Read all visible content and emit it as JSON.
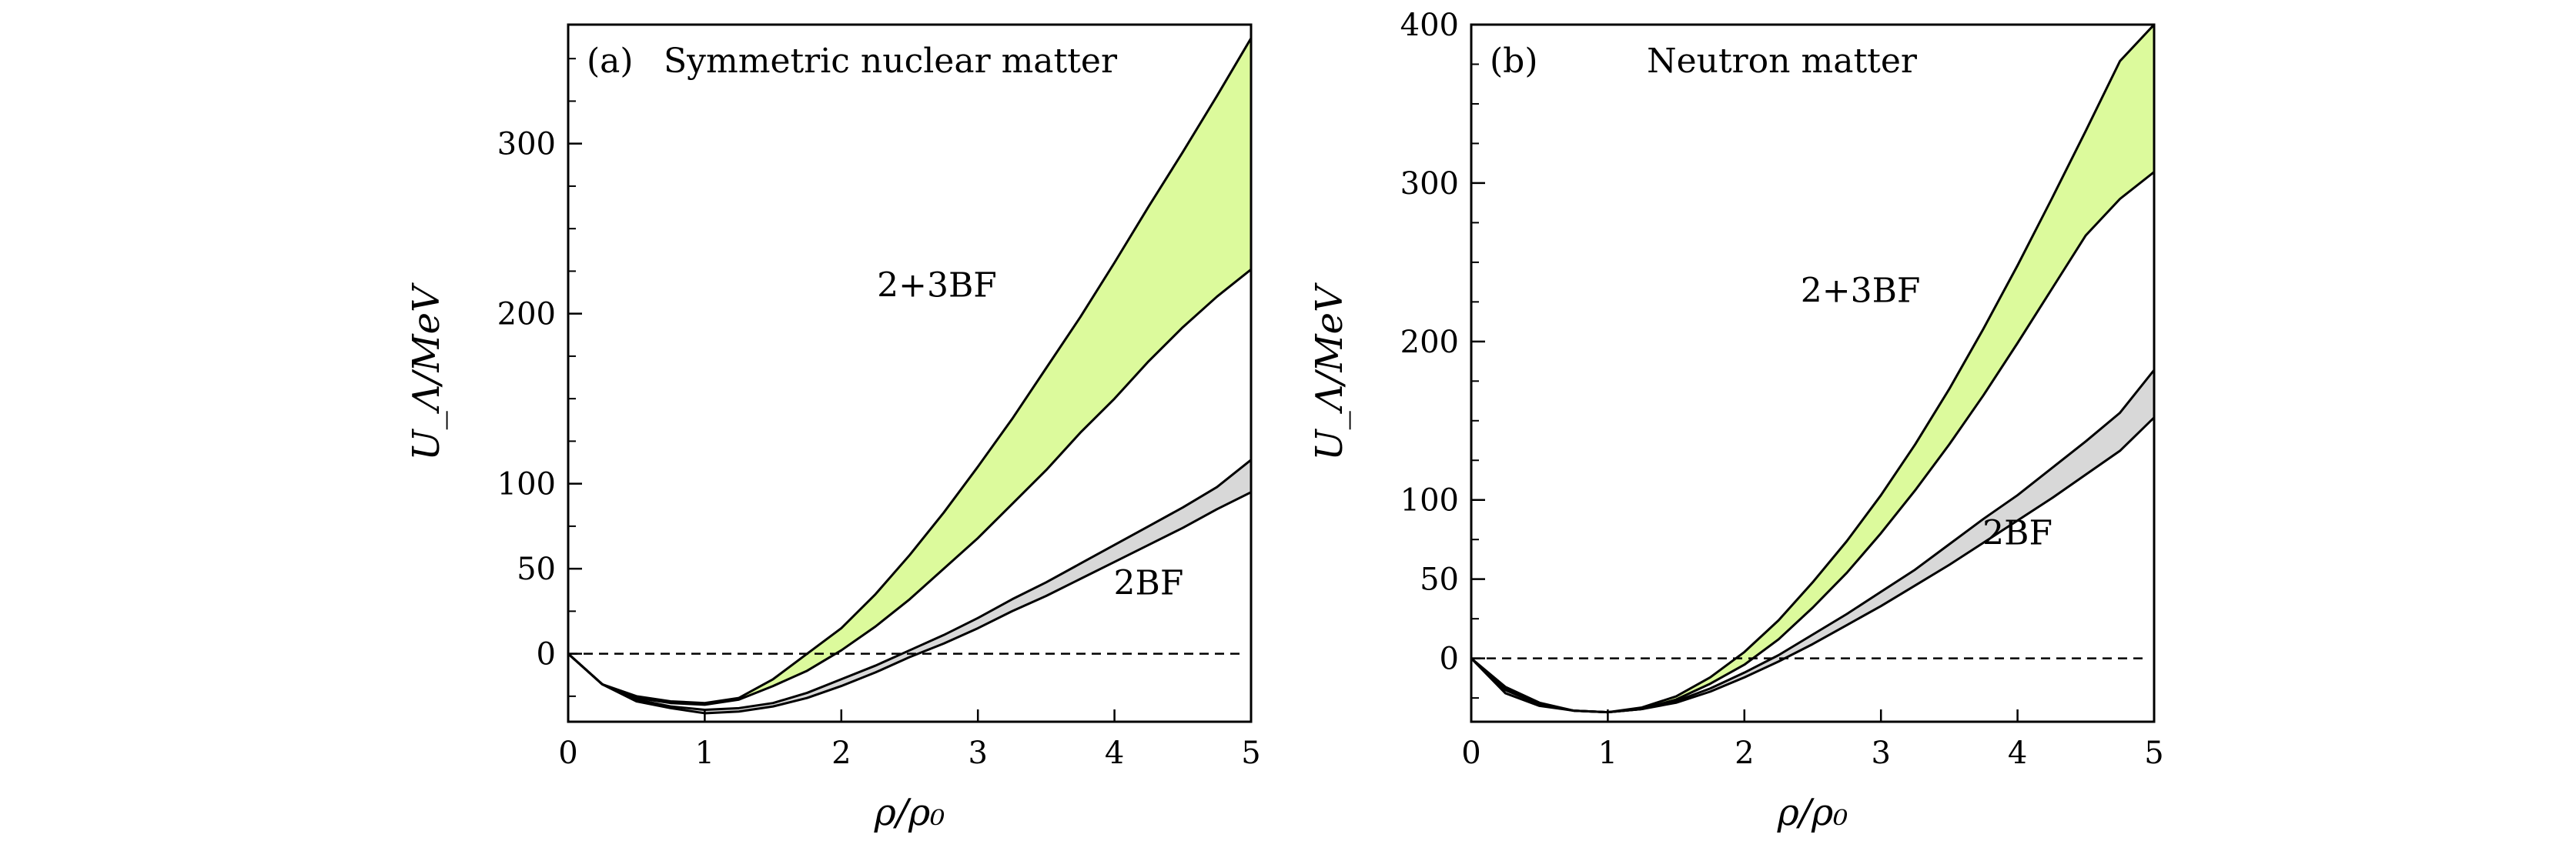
{
  "chart_data": [
    {
      "type": "area",
      "id": "a",
      "panel_label": "(a)",
      "title": "Symmetric nuclear matter",
      "xlabel": "ρ/ρ₀",
      "ylabel": "U_Λ/MeV",
      "xlim": [
        0,
        5
      ],
      "ylim": [
        -40,
        370
      ],
      "x_ticks": [
        0,
        1,
        2,
        3,
        4,
        5
      ],
      "y_ticks": [
        0,
        50,
        100,
        200,
        300
      ],
      "y_minor_ticks": [
        -25,
        25,
        75,
        125,
        150,
        175,
        225,
        250,
        275,
        325,
        350
      ],
      "x_tick_labels": [
        "0",
        "1",
        "2",
        "3",
        "4",
        "5"
      ],
      "y_tick_labels": [
        "0",
        "50",
        "100",
        "200",
        "300"
      ],
      "reference_line": {
        "y": 0,
        "style": "dashed"
      },
      "x": [
        0,
        0.25,
        0.5,
        0.75,
        1.0,
        1.25,
        1.5,
        1.75,
        2.0,
        2.25,
        2.5,
        2.75,
        3.0,
        3.25,
        3.5,
        3.75,
        4.0,
        4.25,
        4.5,
        4.75,
        5.0
      ],
      "series": [
        {
          "label": "2+3BF",
          "color": "#dcfa9c",
          "label_pos": [
            2.7,
            210
          ],
          "upper": [
            0,
            -18,
            -25,
            -28,
            -29,
            -26,
            -15,
            0,
            15,
            35,
            58,
            83,
            110,
            138,
            168,
            198,
            230,
            263,
            295,
            328,
            362
          ],
          "lower": [
            0,
            -18,
            -26,
            -29,
            -30,
            -27,
            -19,
            -10,
            2,
            16,
            32,
            50,
            68,
            88,
            108,
            130,
            150,
            172,
            192,
            210,
            226
          ]
        },
        {
          "label": "2BF",
          "color": "#d8d8d8",
          "label_pos": [
            4.25,
            35
          ],
          "upper": [
            0,
            -18,
            -27,
            -31,
            -33,
            -32,
            -29,
            -23,
            -15,
            -7,
            2,
            11,
            21,
            32,
            42,
            53,
            64,
            75,
            86,
            98,
            114
          ],
          "lower": [
            0,
            -18,
            -28,
            -32,
            -35,
            -34,
            -31,
            -26,
            -19,
            -11,
            -2,
            6,
            15,
            25,
            34,
            44,
            54,
            64,
            74,
            85,
            95
          ]
        }
      ]
    },
    {
      "type": "area",
      "id": "b",
      "panel_label": "(b)",
      "title": "Neutron matter",
      "xlabel": "ρ/ρ₀",
      "ylabel": "U_Λ/MeV",
      "xlim": [
        0,
        5
      ],
      "ylim": [
        -40,
        400
      ],
      "x_ticks": [
        0,
        1,
        2,
        3,
        4,
        5
      ],
      "y_ticks": [
        0,
        50,
        100,
        200,
        300,
        400
      ],
      "y_minor_ticks": [
        -25,
        25,
        75,
        125,
        150,
        175,
        225,
        250,
        275,
        325,
        350,
        375
      ],
      "x_tick_labels": [
        "0",
        "1",
        "2",
        "3",
        "4",
        "5"
      ],
      "y_tick_labels": [
        "0",
        "50",
        "100",
        "200",
        "300",
        "400"
      ],
      "reference_line": {
        "y": 0,
        "style": "dashed"
      },
      "x": [
        0,
        0.25,
        0.5,
        0.75,
        1.0,
        1.25,
        1.5,
        1.75,
        2.0,
        2.25,
        2.5,
        2.75,
        3.0,
        3.25,
        3.5,
        3.75,
        4.0,
        4.25,
        4.5,
        4.75,
        5.0
      ],
      "series": [
        {
          "label": "2+3BF",
          "color": "#dcfa9c",
          "label_pos": [
            2.85,
            225
          ],
          "upper": [
            0,
            -18,
            -28,
            -33,
            -34,
            -31,
            -24,
            -12,
            4,
            24,
            48,
            74,
            103,
            135,
            170,
            208,
            248,
            290,
            333,
            377,
            400
          ],
          "lower": [
            0,
            -19,
            -29,
            -33,
            -34,
            -32,
            -26,
            -16,
            -4,
            12,
            32,
            54,
            79,
            106,
            135,
            166,
            199,
            233,
            267,
            290,
            307
          ]
        },
        {
          "label": "2BF",
          "color": "#d8d8d8",
          "label_pos": [
            4.0,
            72
          ],
          "upper": [
            0,
            -20,
            -29,
            -33,
            -34,
            -32,
            -27,
            -19,
            -9,
            2,
            15,
            28,
            42,
            56,
            72,
            88,
            103,
            120,
            137,
            155,
            182
          ],
          "lower": [
            0,
            -22,
            -30,
            -33,
            -34,
            -32,
            -28,
            -21,
            -12,
            -2,
            9,
            21,
            33,
            46,
            59,
            73,
            87,
            101,
            116,
            131,
            152
          ]
        }
      ]
    }
  ]
}
